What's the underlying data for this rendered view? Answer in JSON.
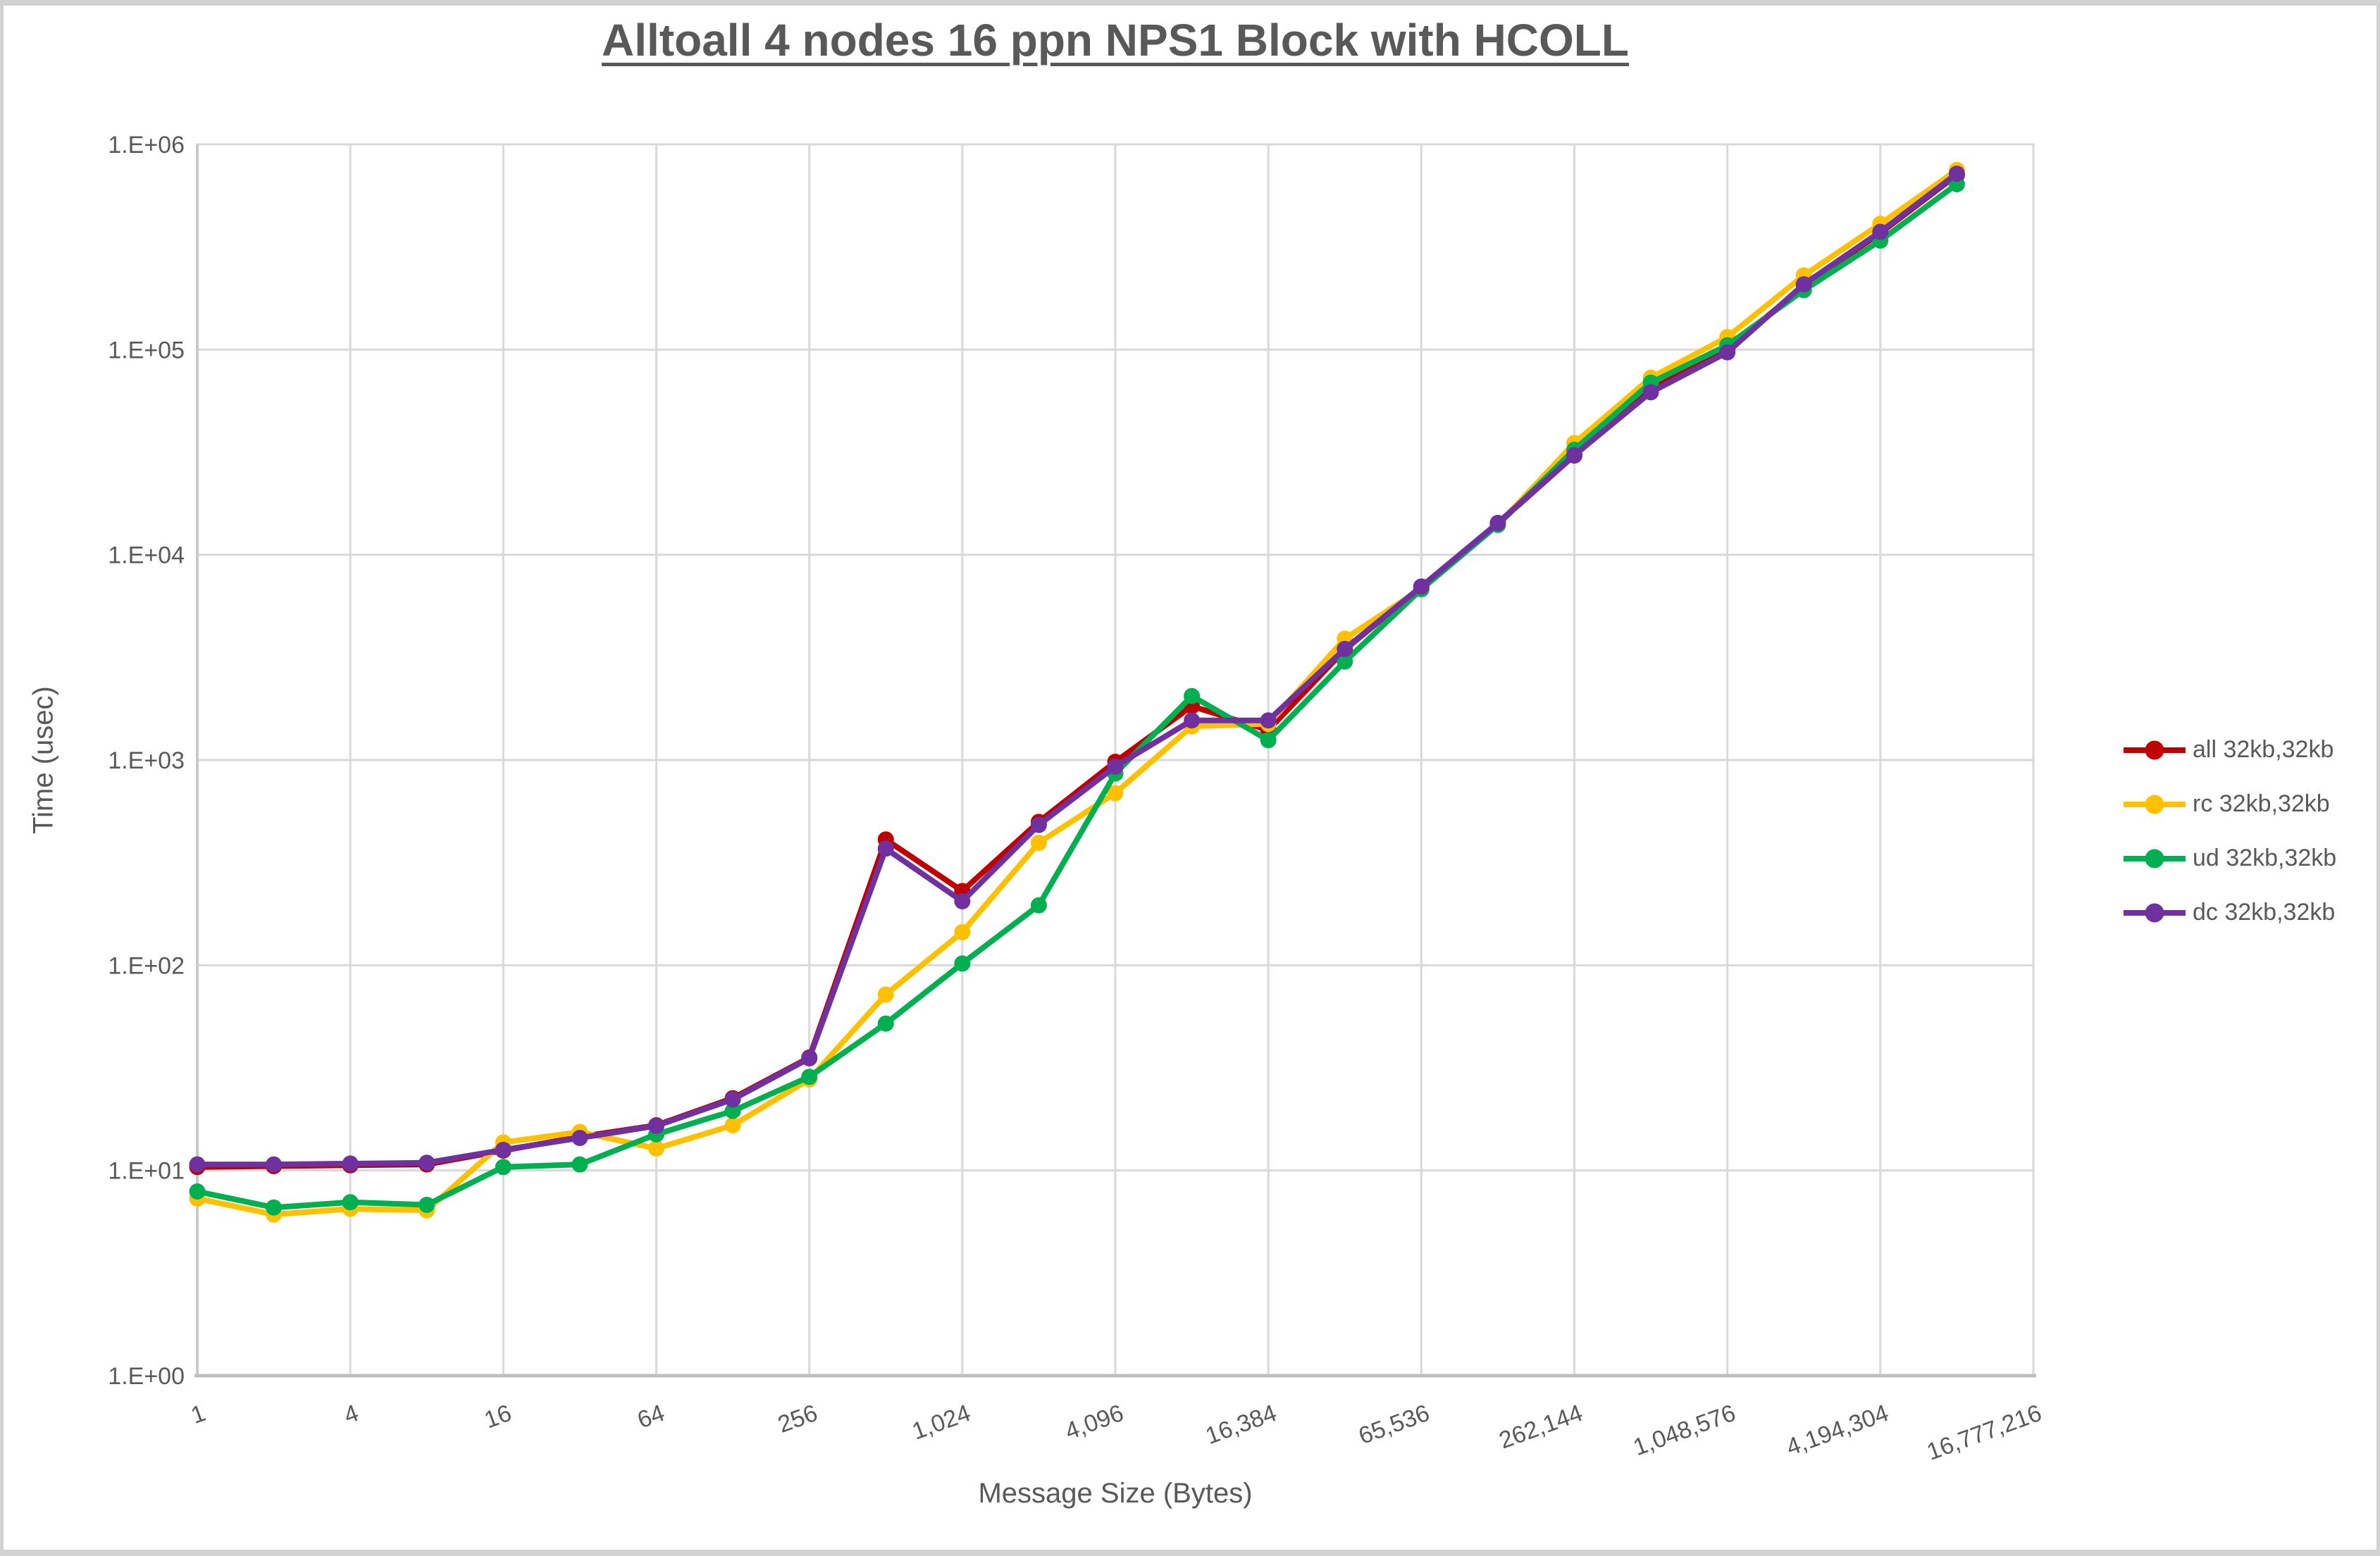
{
  "title": "Alltoall 4 nodes 16 ppn NPS1 Block with HCOLL",
  "colors": {
    "gridline": "#d9d9d9",
    "axis_line": "#bfbfbf",
    "left_axis_line": "#c9c9c9",
    "tick_text": "#595959",
    "title_text": "#595959"
  },
  "chart_data": {
    "type": "line",
    "title": "Alltoall 4 nodes 16 ppn NPS1 Block with HCOLL",
    "xlabel": "Message Size (Bytes)",
    "ylabel": "Time (usec)",
    "x_scale": "log2",
    "y_scale": "log10",
    "xlim": [
      1,
      16777216
    ],
    "ylim": [
      1,
      1000000
    ],
    "grid": true,
    "legend_position": "right",
    "x_tick_values": [
      1,
      4,
      16,
      64,
      256,
      1024,
      4096,
      16384,
      65536,
      262144,
      1048576,
      4194304,
      16777216
    ],
    "x_tick_labels": [
      "1",
      "4",
      "16",
      "64",
      "256",
      "1,024",
      "4,096",
      "16,384",
      "65,536",
      "262,144",
      "1,048,576",
      "4,194,304",
      "16,777,216"
    ],
    "y_tick_values": [
      1,
      10,
      100,
      1000,
      10000,
      100000,
      1000000
    ],
    "y_tick_labels": [
      "1.E+00",
      "1.E+01",
      "1.E+02",
      "1.E+03",
      "1.E+04",
      "1.E+05",
      "1.E+06"
    ],
    "x": [
      1,
      2,
      4,
      8,
      16,
      32,
      64,
      128,
      256,
      512,
      1024,
      2048,
      4096,
      8192,
      16384,
      32768,
      65536,
      131072,
      262144,
      524288,
      1048576,
      2097152,
      4194304,
      8388608
    ],
    "series": [
      {
        "name": "all 32kb,32kb",
        "color": "#C00000",
        "values": [
          10.4,
          10.5,
          10.6,
          10.7,
          12.5,
          14.6,
          16.6,
          22.5,
          35.5,
          410,
          230,
          500,
          980,
          1830,
          1400,
          3450,
          7000,
          14200,
          30500,
          64000,
          100000,
          205000,
          370000,
          710000
        ]
      },
      {
        "name": "rc 32kb,32kb",
        "color": "#FFC000",
        "values": [
          7.3,
          6.1,
          6.5,
          6.4,
          13.7,
          15.4,
          12.8,
          16.6,
          27.8,
          72,
          145,
          395,
          690,
          1460,
          1500,
          3900,
          6850,
          14000,
          35000,
          73000,
          115000,
          230000,
          410000,
          750000
        ]
      },
      {
        "name": "ud 32kb,32kb",
        "color": "#00B050",
        "values": [
          7.9,
          6.6,
          7.0,
          6.8,
          10.4,
          10.7,
          15.0,
          19.5,
          28.6,
          52,
          102,
          196,
          860,
          2050,
          1250,
          3020,
          6800,
          14000,
          32500,
          69000,
          105000,
          195000,
          340000,
          640000
        ]
      },
      {
        "name": "dc 32kb,32kb",
        "color": "#7030A0",
        "values": [
          10.7,
          10.7,
          10.8,
          10.9,
          12.6,
          14.4,
          16.5,
          22.2,
          35.2,
          370,
          205,
          483,
          930,
          1560,
          1560,
          3480,
          7000,
          14300,
          30600,
          62000,
          97000,
          208000,
          375000,
          720000
        ]
      }
    ]
  }
}
